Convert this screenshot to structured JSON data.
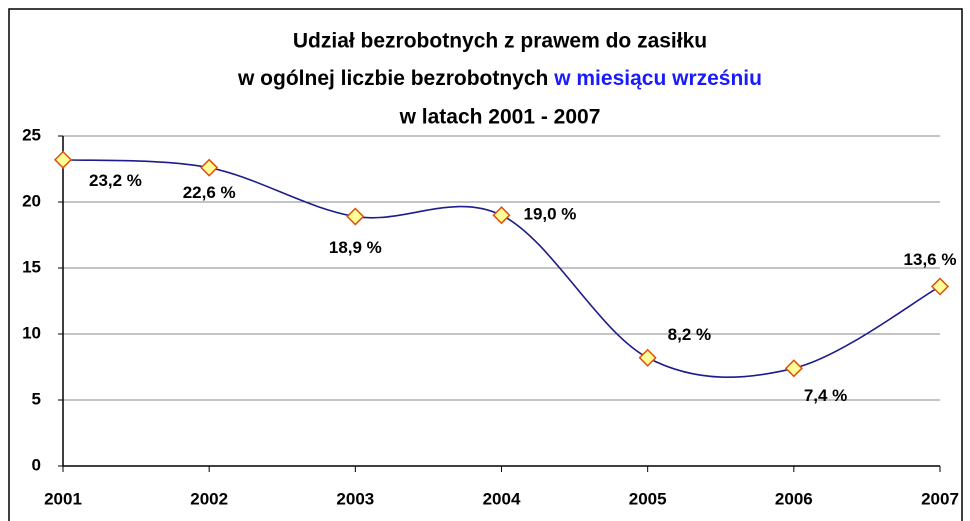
{
  "chart_data": {
    "type": "line",
    "title": [
      "Udział bezrobotnych z prawem do zasiłku",
      "w ogólnej liczbie bezrobotnych",
      "w miesiącu wrześniu",
      "w latach 2001 - 2007"
    ],
    "categories": [
      "2001",
      "2002",
      "2003",
      "2004",
      "2005",
      "2006",
      "2007"
    ],
    "series": [
      {
        "name": "Udział",
        "color": "#1c1c8c",
        "marker_fill": "#ffff99",
        "marker_stroke": "#e0500a",
        "values": [
          23.2,
          22.6,
          18.9,
          19.0,
          8.2,
          7.4,
          13.6
        ],
        "value_labels": [
          "23,2 %",
          "22,6 %",
          "18,9 %",
          "19,0 %",
          "8,2 %",
          "7,4 %",
          "13,6 %"
        ]
      }
    ],
    "ylim": [
      0,
      25
    ],
    "yticks": [
      0,
      5,
      10,
      15,
      20,
      25
    ],
    "grid": true,
    "smooth": true
  }
}
